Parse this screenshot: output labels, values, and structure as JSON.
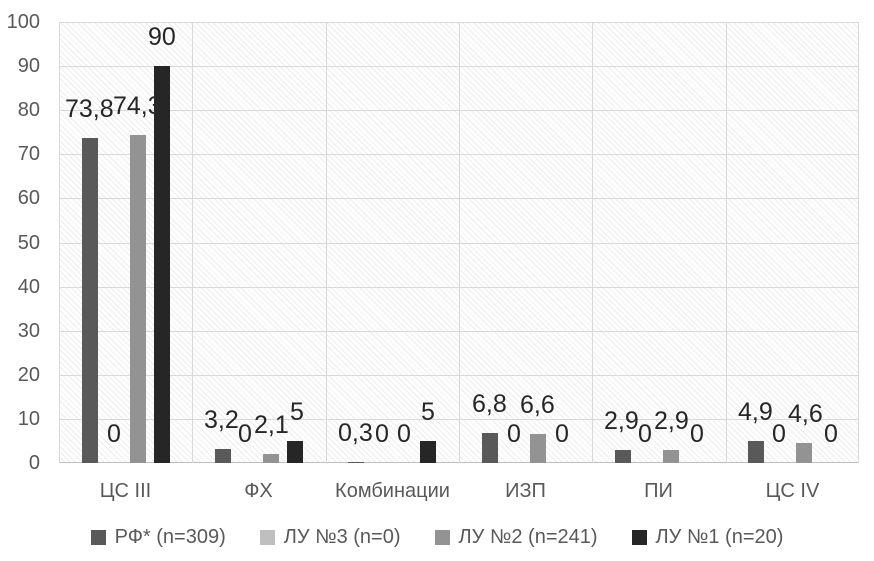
{
  "chart_data": {
    "type": "bar",
    "title": "",
    "xlabel": "",
    "ylabel": "",
    "categories": [
      "ЦС III",
      "ФХ",
      "Комбинации",
      "ИЗП",
      "ПИ",
      "ЦС IV"
    ],
    "series": [
      {
        "name": "РФ* (n=309)",
        "color": "#595959",
        "values": [
          73.8,
          3.2,
          0.3,
          6.8,
          2.9,
          4.9
        ],
        "value_labels": [
          "73,8",
          "3,2",
          "0,3",
          "6,8",
          "2,9",
          "4,9"
        ]
      },
      {
        "name": "ЛУ №3 (n=0)",
        "color": "#bfbfbf",
        "values": [
          0,
          0,
          0,
          0,
          0,
          0
        ],
        "value_labels": [
          "0",
          "0",
          "0",
          "0",
          "0",
          "0"
        ]
      },
      {
        "name": "ЛУ №2 (n=241)",
        "color": "#939393",
        "values": [
          74.3,
          2.1,
          0,
          6.6,
          2.9,
          4.6
        ],
        "value_labels": [
          "74,3",
          "2,1",
          "0",
          "6,6",
          "2,9",
          "4,6"
        ]
      },
      {
        "name": "ЛУ №1 (n=20)",
        "color": "#262626",
        "values": [
          90,
          5,
          5,
          0,
          0,
          0
        ],
        "value_labels": [
          "90",
          "5",
          "5",
          "0",
          "0",
          "0"
        ]
      }
    ],
    "y_axis": {
      "min": 0,
      "max": 100,
      "step": 10,
      "tick_labels": [
        "0",
        "10",
        "20",
        "30",
        "40",
        "50",
        "60",
        "70",
        "80",
        "90",
        "100"
      ]
    },
    "legend_position": "bottom",
    "grid": true,
    "plot_background_pattern": "light-diagonal-hatch"
  },
  "colors": {
    "gridline": "#d9d9d9",
    "axis_line": "#bfbfbf",
    "axis_text": "#595959",
    "category_text": "#595959",
    "legend_text": "#595959",
    "data_label_text": "#262626",
    "background": "#ffffff"
  }
}
